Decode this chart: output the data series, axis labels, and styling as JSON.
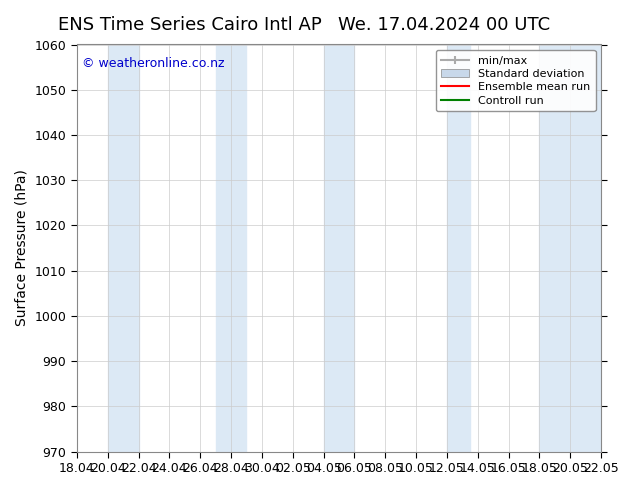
{
  "title_left": "ENS Time Series Cairo Intl AP",
  "title_right": "We. 17.04.2024 00 UTC",
  "ylabel": "Surface Pressure (hPa)",
  "ylim": [
    970,
    1060
  ],
  "yticks": [
    970,
    980,
    990,
    1000,
    1010,
    1020,
    1030,
    1040,
    1050,
    1060
  ],
  "xtick_labels": [
    "18.04",
    "20.04",
    "22.04",
    "24.04",
    "26.04",
    "28.04",
    "30.04",
    "02.05",
    "04.05",
    "06.05",
    "08.05",
    "10.05",
    "12.05",
    "14.05",
    "16.05",
    "18.05",
    "20.05",
    "22.05"
  ],
  "background_color": "#ffffff",
  "plot_bg_color": "#ffffff",
  "band_color": "#dce9f5",
  "band_alpha": 1.0,
  "copyright_text": "© weatheronline.co.nz",
  "copyright_color": "#0000cc",
  "legend_items": [
    "min/max",
    "Standard deviation",
    "Ensemble mean run",
    "Controll run"
  ],
  "legend_colors": [
    "#aaaaaa",
    "#c8d8ea",
    "#ff0000",
    "#008000"
  ],
  "grid_color": "#cccccc",
  "title_fontsize": 13,
  "label_fontsize": 10,
  "tick_fontsize": 9,
  "band_ranges": [
    [
      2,
      4
    ],
    [
      9,
      11
    ],
    [
      16,
      18
    ],
    [
      24,
      25.5
    ],
    [
      30,
      34
    ]
  ]
}
